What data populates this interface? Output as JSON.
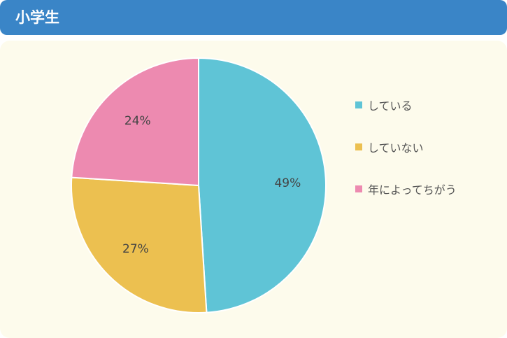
{
  "header": {
    "title": "小学生"
  },
  "chart_data": {
    "type": "pie",
    "categories": [
      "している",
      "していない",
      "年によってちがう"
    ],
    "values": [
      49,
      27,
      24
    ],
    "labels": [
      "49%",
      "27%",
      "24%"
    ],
    "colors": [
      "#5fc4d6",
      "#ecc050",
      "#ed8ab0"
    ],
    "legend": "right"
  }
}
